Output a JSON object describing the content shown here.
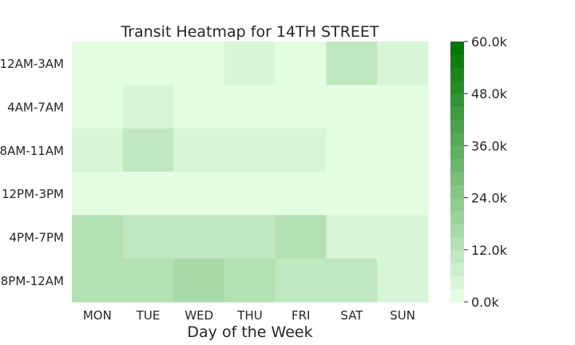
{
  "chart_data": {
    "type": "heatmap",
    "title": "Transit Heatmap for 14TH STREET",
    "xlabel": "Day of the Week",
    "ylabel": "",
    "x_categories": [
      "MON",
      "TUE",
      "WED",
      "THU",
      "FRI",
      "SAT",
      "SUN"
    ],
    "y_categories": [
      "12AM-3AM",
      "4AM-7AM",
      "8AM-11AM",
      "12PM-3PM",
      "4PM-7PM",
      "8PM-12AM"
    ],
    "values": [
      [
        0,
        0,
        0,
        4500,
        0,
        9000,
        4500
      ],
      [
        0,
        4500,
        0,
        0,
        0,
        0,
        0
      ],
      [
        4500,
        9000,
        4500,
        4500,
        4500,
        0,
        0
      ],
      [
        0,
        0,
        0,
        0,
        0,
        0,
        0
      ],
      [
        13500,
        9000,
        9000,
        9000,
        13500,
        4500,
        4500
      ],
      [
        13500,
        13500,
        16500,
        12000,
        9000,
        9000,
        4500
      ]
    ],
    "colorbar": {
      "min": 0,
      "max": 60000,
      "ticks": [
        "0.0k",
        "12.0k",
        "24.0k",
        "36.0k",
        "48.0k",
        "60.0k"
      ],
      "tick_values": [
        0,
        12000,
        24000,
        36000,
        48000,
        60000
      ],
      "bins": 20,
      "color_low": "#e3fde3",
      "color_high": "#037803"
    },
    "grid": false
  }
}
